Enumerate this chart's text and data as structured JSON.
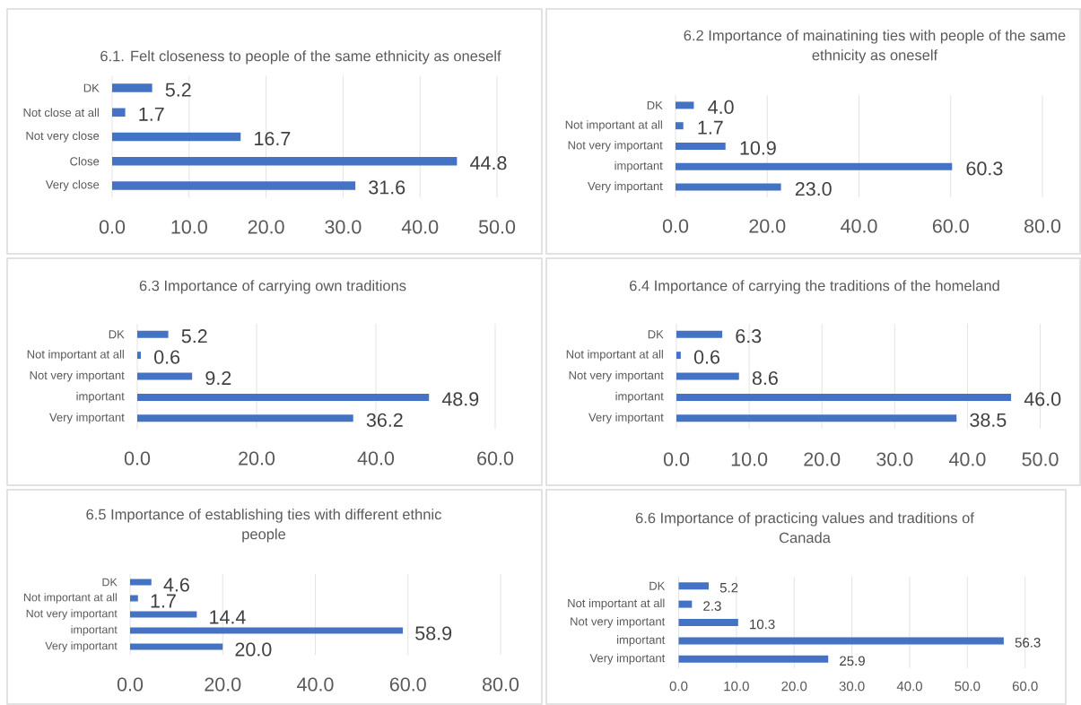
{
  "chart_data": [
    {
      "type": "bar",
      "orientation": "horizontal",
      "title": "6.1. Felt closeness to people of the same ethnicity as oneself",
      "categories": [
        "DK",
        "Not close at all",
        "Not very close",
        "Close",
        "Very close"
      ],
      "values": [
        5.2,
        1.7,
        16.7,
        44.8,
        31.6
      ],
      "value_labels": [
        "5.2",
        "1.7",
        "16.7",
        "44.8",
        "31.6"
      ],
      "color": "#4472c4",
      "xlim": [
        0,
        50
      ],
      "xticks": [
        {
          "value": 0,
          "label": "0.0"
        },
        {
          "value": 10,
          "label": "10.0"
        },
        {
          "value": 20,
          "label": "20.0"
        },
        {
          "value": 30,
          "label": "30.0"
        },
        {
          "value": 40,
          "label": "40.0"
        },
        {
          "value": 50,
          "label": "50.0"
        }
      ],
      "grid": "x"
    },
    {
      "type": "bar",
      "orientation": "horizontal",
      "title": "6.2 Importance of mainatining ties with people of the same ethnicity as oneself",
      "categories": [
        "DK",
        "Not important at all",
        "Not very important",
        "important",
        "Very important"
      ],
      "values": [
        4.0,
        1.7,
        10.9,
        60.3,
        23.0
      ],
      "value_labels": [
        "4.0",
        "1.7",
        "10.9",
        "60.3",
        "23.0"
      ],
      "color": "#4472c4",
      "xlim": [
        0,
        80
      ],
      "xticks": [
        {
          "value": 0,
          "label": "0.0"
        },
        {
          "value": 20,
          "label": "20.0"
        },
        {
          "value": 40,
          "label": "40.0"
        },
        {
          "value": 60,
          "label": "60.0"
        },
        {
          "value": 80,
          "label": "80.0"
        }
      ],
      "grid": "x"
    },
    {
      "type": "bar",
      "orientation": "horizontal",
      "title": "6.3 Importance of carrying own traditions",
      "categories": [
        "DK",
        "Not important at all",
        "Not very important",
        "important",
        "Very important"
      ],
      "values": [
        5.2,
        0.6,
        9.2,
        48.9,
        36.2
      ],
      "value_labels": [
        "5.2",
        "0.6",
        "9.2",
        "48.9",
        "36.2"
      ],
      "color": "#4472c4",
      "xlim": [
        0,
        60
      ],
      "xticks": [
        {
          "value": 0,
          "label": "0.0"
        },
        {
          "value": 20,
          "label": "20.0"
        },
        {
          "value": 40,
          "label": "40.0"
        },
        {
          "value": 60,
          "label": "60.0"
        }
      ],
      "grid": "x"
    },
    {
      "type": "bar",
      "orientation": "horizontal",
      "title": "6.4 Importance of carrying the traditions of the homeland",
      "categories": [
        "DK",
        "Not important at all",
        "Not very important",
        "important",
        "Very important"
      ],
      "values": [
        6.3,
        0.6,
        8.6,
        46.0,
        38.5
      ],
      "value_labels": [
        "6.3",
        "0.6",
        "8.6",
        "46.0",
        "38.5"
      ],
      "color": "#4472c4",
      "xlim": [
        0,
        50
      ],
      "xticks": [
        {
          "value": 0,
          "label": "0.0"
        },
        {
          "value": 10,
          "label": "10.0"
        },
        {
          "value": 20,
          "label": "20.0"
        },
        {
          "value": 30,
          "label": "30.0"
        },
        {
          "value": 40,
          "label": "40.0"
        },
        {
          "value": 50,
          "label": "50.0"
        }
      ],
      "grid": "x"
    },
    {
      "type": "bar",
      "orientation": "horizontal",
      "title": "6.5 Importance of establishing ties with different ethnic people",
      "categories": [
        "DK",
        "Not important at all",
        "Not very important",
        "important",
        "Very important"
      ],
      "values": [
        4.6,
        1.7,
        14.4,
        58.9,
        20.0
      ],
      "value_labels": [
        "4.6",
        "1.7",
        "14.4",
        "58.9",
        "20.0"
      ],
      "color": "#4472c4",
      "xlim": [
        0,
        80
      ],
      "xticks": [
        {
          "value": 0,
          "label": "0.0"
        },
        {
          "value": 20,
          "label": "20.0"
        },
        {
          "value": 40,
          "label": "40.0"
        },
        {
          "value": 60,
          "label": "60.0"
        },
        {
          "value": 80,
          "label": "80.0"
        }
      ],
      "grid": "x"
    },
    {
      "type": "bar",
      "orientation": "horizontal",
      "title": "6.6 Importance of practicing values and traditions of Canada",
      "categories": [
        "DK",
        "Not important at all",
        "Not very important",
        "important",
        "Very important"
      ],
      "values": [
        5.2,
        2.3,
        10.3,
        56.3,
        25.9
      ],
      "value_labels": [
        "5.2",
        "2.3",
        "10.3",
        "56.3",
        "25.9"
      ],
      "color": "#4472c4",
      "xlim": [
        0,
        60
      ],
      "xticks": [
        {
          "value": 0,
          "label": "0.0"
        },
        {
          "value": 10,
          "label": "10.0"
        },
        {
          "value": 20,
          "label": "20.0"
        },
        {
          "value": 30,
          "label": "30.0"
        },
        {
          "value": 40,
          "label": "40.0"
        },
        {
          "value": 50,
          "label": "50.0"
        },
        {
          "value": 60,
          "label": "60.0"
        }
      ],
      "grid": "x"
    }
  ]
}
